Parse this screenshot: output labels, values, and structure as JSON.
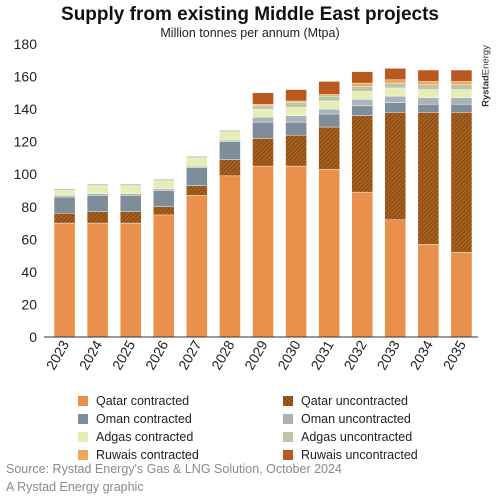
{
  "header": {
    "title": "Supply from existing Middle East projects",
    "subtitle": "Million tonnes per annum (Mtpa)",
    "brand_bold": "Rystad",
    "brand_light": "Energy"
  },
  "footer": {
    "source": "Source: Rystad Energy's Gas & LNG Solution, October 2024",
    "credit": "A Rystad Energy graphic"
  },
  "chart_data": {
    "type": "bar",
    "stacked": true,
    "title": "Supply from existing Middle East projects",
    "subtitle": "Million tonnes per annum (Mtpa)",
    "xlabel": "",
    "ylabel": "",
    "ylim": [
      0,
      180
    ],
    "yticks": [
      0,
      20,
      40,
      60,
      80,
      100,
      120,
      140,
      160,
      180
    ],
    "grid": false,
    "legend_position": "bottom",
    "categories": [
      "2023",
      "2024",
      "2025",
      "2026",
      "2027",
      "2028",
      "2029",
      "2030",
      "2031",
      "2032",
      "2033",
      "2034",
      "2035"
    ],
    "series": [
      {
        "name": "Qatar contracted",
        "color": "#e8904c",
        "pattern": "solid",
        "values": [
          70,
          70,
          70,
          75,
          87,
          99,
          105,
          105,
          103,
          89,
          72,
          57,
          52
        ]
      },
      {
        "name": "Qatar uncontracted",
        "color": "#a9601e",
        "pattern": "hatch",
        "values": [
          6,
          7,
          7,
          5,
          6,
          10,
          17,
          19,
          26,
          47,
          66,
          81,
          86
        ]
      },
      {
        "name": "Oman contracted",
        "color": "#7d8d99",
        "pattern": "solid",
        "values": [
          10,
          10,
          10,
          10,
          11,
          11,
          10,
          8,
          8,
          6,
          6,
          5,
          5
        ]
      },
      {
        "name": "Oman uncontracted",
        "color": "#a8b3bc",
        "pattern": "solid",
        "values": [
          1,
          1,
          1,
          1,
          1,
          1,
          3,
          4,
          3,
          4,
          4,
          4,
          4
        ]
      },
      {
        "name": "Adgas contracted",
        "color": "#e6edb7",
        "pattern": "solid",
        "values": [
          3,
          5,
          5,
          5,
          5,
          5,
          5,
          5,
          5,
          5,
          5,
          5,
          5
        ]
      },
      {
        "name": "Adgas uncontracted",
        "color": "#bac7a7",
        "pattern": "solid",
        "values": [
          1,
          1,
          1,
          1,
          1,
          1,
          2,
          3,
          3,
          3,
          3,
          3,
          3
        ]
      },
      {
        "name": "Ruwais contracted",
        "color": "#f1a55d",
        "pattern": "solid",
        "values": [
          0,
          0,
          0,
          0,
          0,
          0,
          1,
          1,
          1,
          2,
          2,
          2,
          2
        ]
      },
      {
        "name": "Ruwais uncontracted",
        "color": "#b85a1f",
        "pattern": "solid",
        "values": [
          0,
          0,
          0,
          0,
          0,
          0,
          7,
          7,
          8,
          7,
          7,
          7,
          7
        ]
      }
    ]
  }
}
